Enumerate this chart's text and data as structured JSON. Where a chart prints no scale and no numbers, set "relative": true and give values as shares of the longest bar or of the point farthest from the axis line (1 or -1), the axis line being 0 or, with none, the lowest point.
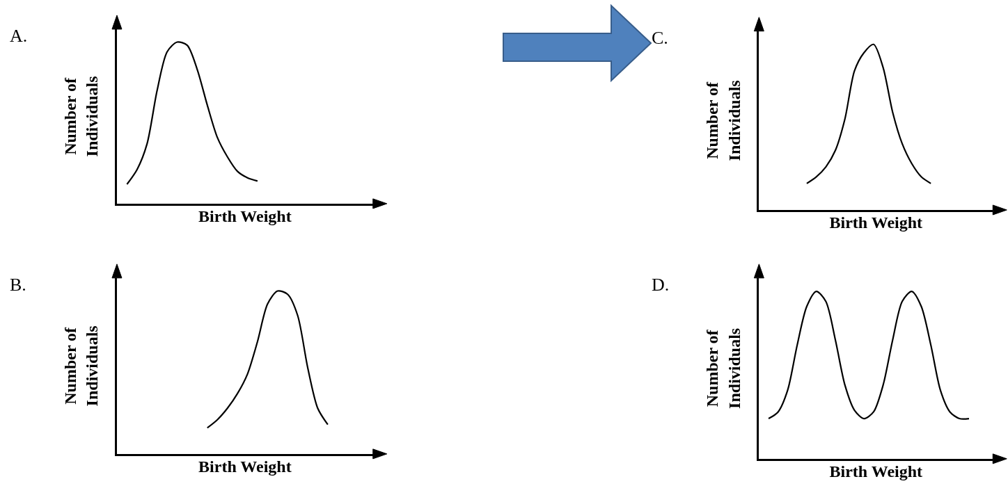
{
  "chart_data": [
    {
      "type": "line",
      "title": "A.",
      "xlabel": "Birth Weight",
      "ylabel": "Number of\nIndividuals",
      "relative": true,
      "color": "#000000",
      "legend": false,
      "marker": "none",
      "line_style": "solid",
      "tick_labels": false,
      "categories": [
        null,
        null,
        null,
        null,
        null,
        null,
        null,
        null,
        null,
        null,
        null,
        null,
        null,
        null,
        null,
        null,
        null,
        null,
        null,
        null,
        null,
        null,
        null,
        null,
        null
      ],
      "values": [
        null,
        0.12,
        0.21,
        0.37,
        0.7,
        0.94,
        1.0,
        0.98,
        0.83,
        0.61,
        0.41,
        0.29,
        0.2,
        0.16,
        0.14,
        null,
        null,
        null,
        null,
        null,
        null,
        null,
        null,
        null,
        null
      ]
    },
    {
      "type": "line",
      "title": "C.",
      "xlabel": "Birth Weight",
      "ylabel": "Number of\nIndividuals",
      "relative": true,
      "color": "#000000",
      "legend": false,
      "marker": "none",
      "line_style": "solid",
      "tick_labels": false,
      "categories": [
        null,
        null,
        null,
        null,
        null,
        null,
        null,
        null,
        null,
        null,
        null,
        null,
        null,
        null,
        null,
        null,
        null,
        null,
        null,
        null,
        null,
        null,
        null,
        null
      ],
      "values": [
        null,
        null,
        null,
        null,
        null,
        0.16,
        0.2,
        0.26,
        0.36,
        0.55,
        0.84,
        0.95,
        1.0,
        0.86,
        0.59,
        0.4,
        0.28,
        0.2,
        0.16,
        null,
        null,
        null,
        null,
        null
      ]
    },
    {
      "type": "line",
      "title": "B.",
      "xlabel": "Birth Weight",
      "ylabel": "Number of\nIndividuals",
      "relative": true,
      "color": "#000000",
      "legend": false,
      "marker": "none",
      "line_style": "solid",
      "tick_labels": false,
      "categories": [
        null,
        null,
        null,
        null,
        null,
        null,
        null,
        null,
        null,
        null,
        null,
        null,
        null,
        null,
        null,
        null,
        null,
        null,
        null,
        null,
        null,
        null,
        null,
        null,
        null
      ],
      "values": [
        null,
        null,
        null,
        null,
        null,
        null,
        null,
        null,
        null,
        0.16,
        0.21,
        0.28,
        0.37,
        0.49,
        0.69,
        0.92,
        1.0,
        0.98,
        0.85,
        0.53,
        0.28,
        0.18,
        null,
        null,
        null
      ]
    },
    {
      "type": "line",
      "title": "D.",
      "xlabel": "Birth Weight",
      "ylabel": "Number of\nIndividuals",
      "relative": true,
      "color": "#000000",
      "legend": false,
      "marker": "none",
      "line_style": "solid",
      "tick_labels": false,
      "categories": [
        null,
        null,
        null,
        null,
        null,
        null,
        null,
        null,
        null,
        null,
        null,
        null,
        null,
        null,
        null,
        null,
        null,
        null,
        null,
        null,
        null,
        null,
        null,
        null
      ],
      "values": [
        null,
        0.24,
        0.28,
        0.41,
        0.68,
        0.91,
        1.0,
        0.94,
        0.71,
        0.44,
        0.29,
        0.24,
        0.28,
        0.44,
        0.71,
        0.94,
        1.0,
        0.91,
        0.68,
        0.41,
        0.28,
        0.24,
        0.24,
        null
      ]
    }
  ]
}
